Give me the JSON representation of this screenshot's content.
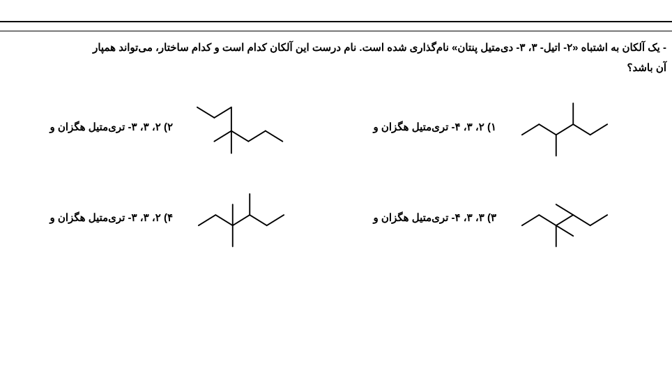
{
  "question": {
    "prefix": "- ",
    "text_line1": "یک آلکان به اشتباه «۲- اتیل- ۳، ۳- دی‌متیل پنتان» نام‌گذاری شده است. نام درست این آلکان کدام است و کدام ساختار، می‌تواند همپار",
    "text_line2": "آن باشد؟"
  },
  "options": [
    {
      "num": "۱)",
      "label": "۲، ۳، ۴- تری‌متیل هگزان و"
    },
    {
      "num": "۲)",
      "label": "۲، ۳، ۳- تری‌متیل هگزان و"
    },
    {
      "num": "۳)",
      "label": "۳، ۳، ۴- تری‌متیل هگزان و"
    },
    {
      "num": "۴)",
      "label": "۲، ۳، ۳- تری‌متیل هگزان و"
    }
  ],
  "style": {
    "text_color": "#000000",
    "bg_color": "#ffffff",
    "fontsize_question": 15,
    "fontsize_option": 15,
    "stroke_width": 2
  },
  "molecules": {
    "opt1": {
      "type": "skeletal",
      "lines": [
        [
          20,
          72,
          46,
          56
        ],
        [
          46,
          56,
          72,
          72
        ],
        [
          72,
          72,
          98,
          56
        ],
        [
          98,
          56,
          124,
          72
        ],
        [
          124,
          72,
          150,
          56
        ],
        [
          72,
          72,
          72,
          104
        ],
        [
          98,
          56,
          98,
          24
        ]
      ]
    },
    "opt2": {
      "type": "skeletal",
      "lines": [
        [
          18,
          30,
          44,
          46
        ],
        [
          44,
          46,
          70,
          30
        ],
        [
          70,
          30,
          70,
          66
        ],
        [
          70,
          66,
          44,
          82
        ],
        [
          70,
          66,
          96,
          82
        ],
        [
          96,
          82,
          122,
          66
        ],
        [
          122,
          66,
          148,
          82
        ],
        [
          70,
          66,
          70,
          100
        ]
      ]
    },
    "opt3": {
      "type": "skeletal",
      "lines": [
        [
          20,
          72,
          46,
          56
        ],
        [
          46,
          56,
          72,
          72
        ],
        [
          72,
          72,
          98,
          56
        ],
        [
          98,
          56,
          124,
          72
        ],
        [
          124,
          72,
          150,
          56
        ],
        [
          72,
          72,
          72,
          104
        ],
        [
          72,
          72,
          98,
          88
        ],
        [
          98,
          56,
          72,
          40
        ]
      ]
    },
    "opt4": {
      "type": "skeletal",
      "lines": [
        [
          20,
          72,
          46,
          56
        ],
        [
          46,
          56,
          72,
          72
        ],
        [
          72,
          72,
          98,
          56
        ],
        [
          98,
          56,
          124,
          72
        ],
        [
          124,
          72,
          150,
          56
        ],
        [
          72,
          72,
          72,
          104
        ],
        [
          72,
          72,
          72,
          40
        ],
        [
          98,
          56,
          98,
          24
        ]
      ]
    }
  }
}
